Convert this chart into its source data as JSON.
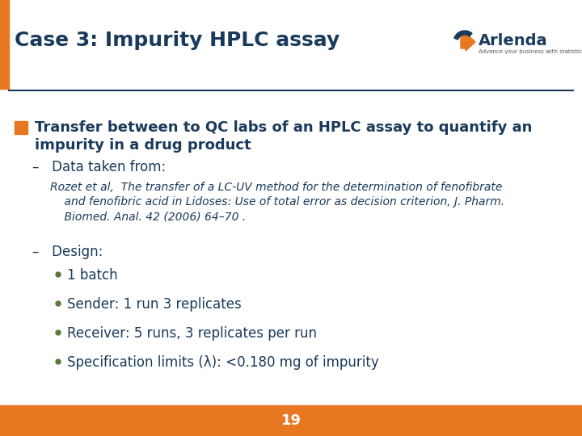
{
  "title": "Case 3: Impurity HPLC assay",
  "title_color": "#1a3a5c",
  "title_fontsize": 18,
  "bg_color": "#ffffff",
  "header_bar_color": "#e87722",
  "footer_color": "#e87722",
  "footer_text": "19",
  "footer_text_color": "#ffffff",
  "separator_color": "#1a3a5c",
  "bullet_color": "#e87722",
  "green_bullet_color": "#5a7a3c",
  "main_bullet_text1": "Transfer between to QC labs of an HPLC assay to quantify an",
  "main_bullet_text2": "impurity in a drug product",
  "dash1_text": "–   Data taken from:",
  "ref_lines": [
    "Rozet et al,  The transfer of a LC-UV method for the determination of fenofibrate",
    "    and fenofibric acid in Lidoses: Use of total error as decision criterion, J. Pharm.",
    "    Biomed. Anal. 42 (2006) 64–70 ."
  ],
  "dash2_text": "–   Design:",
  "bullets": [
    "1 batch",
    "Sender: 1 run 3 replicates",
    "Receiver: 5 runs, 3 replicates per run",
    "Specification limits (λ): <0.180 mg of impurity"
  ],
  "text_color": "#1a3a5c",
  "main_fontsize": 13,
  "sub_fontsize": 12,
  "ref_fontsize": 10,
  "arlenda_text": "Arlenda",
  "arlenda_fontsize": 14
}
